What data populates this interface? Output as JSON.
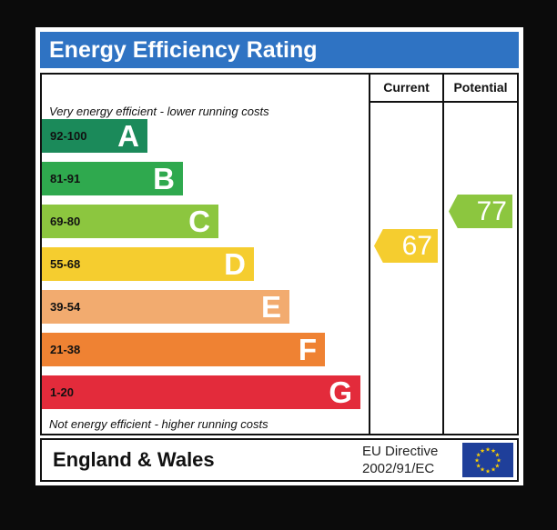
{
  "title": "Energy Efficiency Rating",
  "columns": {
    "current": "Current",
    "potential": "Potential"
  },
  "captions": {
    "top": "Very energy efficient - lower running costs",
    "bottom": "Not energy efficient - higher running costs"
  },
  "bands": [
    {
      "range": "92-100",
      "letter": "A",
      "color": "#1b8a5a"
    },
    {
      "range": "81-91",
      "letter": "B",
      "color": "#2fa94e"
    },
    {
      "range": "69-80",
      "letter": "C",
      "color": "#8cc63f"
    },
    {
      "range": "55-68",
      "letter": "D",
      "color": "#f5cd2f"
    },
    {
      "range": "39-54",
      "letter": "E",
      "color": "#f2ab6f"
    },
    {
      "range": "21-38",
      "letter": "F",
      "color": "#ef8233"
    },
    {
      "range": "1-20",
      "letter": "G",
      "color": "#e32b3b"
    }
  ],
  "ratings": {
    "current": {
      "value": 67,
      "band": "D",
      "color": "#f5cd2f"
    },
    "potential": {
      "value": 77,
      "band": "C",
      "color": "#8cc63f"
    }
  },
  "footer": {
    "region": "England & Wales",
    "directive_line1": "EU Directive",
    "directive_line2": "2002/91/EC",
    "flag_icon": "eu-flag-icon",
    "flag_color": "#1f3f9a",
    "star_color": "#ffd200"
  },
  "chart_data": {
    "type": "bar",
    "categories": [
      "92-100",
      "81-91",
      "69-80",
      "55-68",
      "39-54",
      "21-38",
      "1-20"
    ],
    "series": [
      {
        "name": "Current",
        "values": [
          null,
          null,
          null,
          67,
          null,
          null,
          null
        ]
      },
      {
        "name": "Potential",
        "values": [
          null,
          null,
          77,
          null,
          null,
          null,
          null
        ]
      }
    ],
    "title": "Energy Efficiency Rating",
    "xlabel": "",
    "ylabel": ""
  }
}
